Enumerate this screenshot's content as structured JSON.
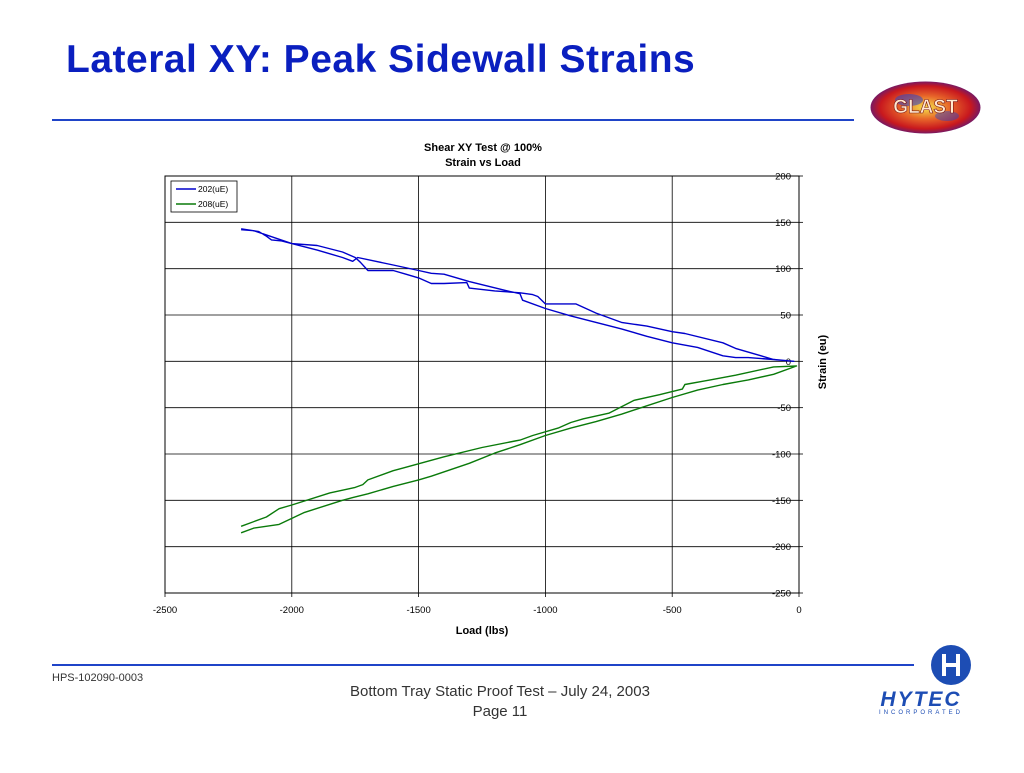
{
  "slide": {
    "title": "Lateral XY: Peak Sidewall Strains",
    "doc_id": "HPS-102090-0003",
    "footer_title": "Bottom Tray Static Proof Test – July 24, 2003",
    "footer_page": "Page 11",
    "logo_left_text": "GLAST",
    "logo_right_text": "HYTEC",
    "logo_right_subtext": "INCORPORATED",
    "accent_color": "#0a1fbf",
    "rule_color": "#1f44c8"
  },
  "chart_data": {
    "type": "line",
    "title": "Shear XY Test @ 100%",
    "subtitle": "Strain vs Load",
    "xlabel": "Load (lbs)",
    "ylabel": "Strain (eu)",
    "xlim": [
      -2500,
      0
    ],
    "ylim": [
      -250,
      200
    ],
    "xticks": [
      -2500,
      -2000,
      -1500,
      -1000,
      -500,
      0
    ],
    "yticks": [
      200,
      150,
      100,
      50,
      0,
      -50,
      -100,
      -150,
      -200,
      -250
    ],
    "grid": true,
    "legend_position": "top-left",
    "series": [
      {
        "name": "202(uE)",
        "color": "#0000cc",
        "x": [
          -2200,
          -2150,
          -2000,
          -1900,
          -1800,
          -1760,
          -1740,
          -1600,
          -1500,
          -1450,
          -1400,
          -1300,
          -1150,
          -1100,
          -1090,
          -1000,
          -900,
          -800,
          -700,
          -600,
          -500,
          -400,
          -300,
          -250,
          -200,
          -100,
          -20,
          -100,
          -250,
          -300,
          -450,
          -500,
          -600,
          -700,
          -800,
          -880,
          -1000,
          -1030,
          -1050,
          -1100,
          -1200,
          -1300,
          -1310,
          -1400,
          -1450,
          -1500,
          -1550,
          -1600,
          -1700,
          -1730,
          -1750,
          -1800,
          -1900,
          -2000,
          -2040,
          -2080,
          -2100,
          -2130,
          -2200
        ],
        "y": [
          142,
          141,
          127,
          120,
          112,
          108,
          112,
          104,
          98,
          95,
          94,
          86,
          76,
          73,
          66,
          57,
          49,
          42,
          35,
          27,
          20,
          15,
          6,
          4,
          4,
          2,
          0,
          2,
          14,
          20,
          30,
          32,
          38,
          42,
          52,
          62,
          62,
          70,
          72,
          74,
          76,
          79,
          85,
          84,
          84,
          90,
          94,
          98,
          98,
          107,
          112,
          118,
          125,
          127,
          130,
          131,
          135,
          140,
          143
        ]
      },
      {
        "name": "208(uE)",
        "color": "#0a7a0a",
        "x": [
          -2200,
          -2150,
          -2050,
          -1950,
          -1800,
          -1760,
          -1700,
          -1600,
          -1500,
          -1450,
          -1300,
          -1200,
          -1100,
          -1000,
          -900,
          -800,
          -700,
          -600,
          -500,
          -400,
          -300,
          -200,
          -100,
          -10,
          -100,
          -250,
          -350,
          -450,
          -460,
          -550,
          -650,
          -700,
          -750,
          -850,
          -900,
          -950,
          -1050,
          -1100,
          -1120,
          -1250,
          -1400,
          -1560,
          -1600,
          -1700,
          -1720,
          -1750,
          -1850,
          -2000,
          -2050,
          -2100,
          -2200
        ],
        "y": [
          -185,
          -180,
          -176,
          -163,
          -150,
          -147,
          -143,
          -135,
          -128,
          -124,
          -110,
          -99,
          -90,
          -80,
          -72,
          -65,
          -57,
          -48,
          -39,
          -31,
          -25,
          -20,
          -14,
          -5,
          -6,
          -15,
          -20,
          -25,
          -30,
          -36,
          -42,
          -49,
          -56,
          -62,
          -66,
          -72,
          -80,
          -85,
          -86,
          -93,
          -103,
          -115,
          -118,
          -128,
          -133,
          -136,
          -142,
          -155,
          -159,
          -168,
          -178
        ]
      }
    ]
  }
}
